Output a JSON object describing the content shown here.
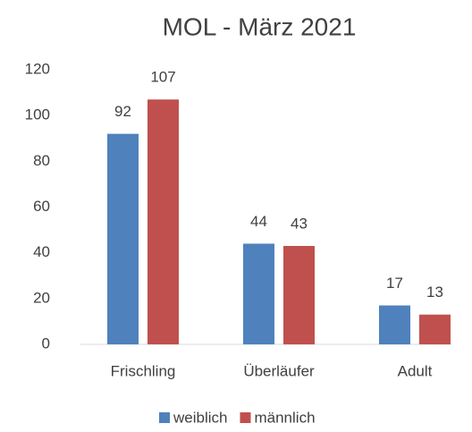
{
  "chart_data": {
    "type": "bar",
    "title": "MOL - März 2021",
    "categories": [
      "Frischling",
      "Überläufer",
      "Adult"
    ],
    "series": [
      {
        "name": "weiblich",
        "color": "#4f81bd",
        "values": [
          92,
          44,
          17
        ]
      },
      {
        "name": "männlich",
        "color": "#c0504d",
        "values": [
          107,
          43,
          13
        ]
      }
    ],
    "ylim": [
      0,
      120
    ],
    "yticks": [
      0,
      20,
      40,
      60,
      80,
      100,
      120
    ],
    "grid": false,
    "legend": "bottom"
  }
}
